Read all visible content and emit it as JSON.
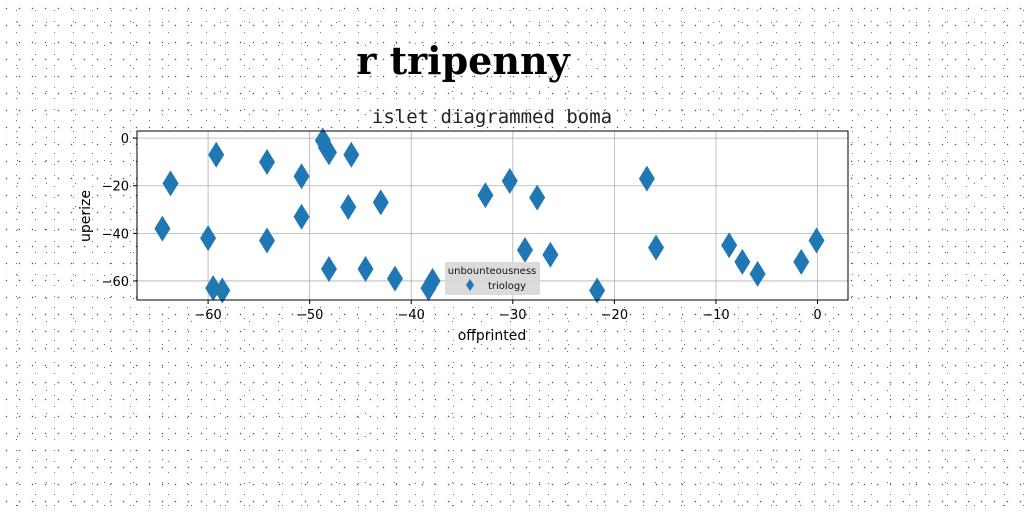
{
  "figure": {
    "suptitle": "r tripenny"
  },
  "chart_data": {
    "type": "scatter",
    "title": "islet diagrammed boma",
    "xlabel": "offprinted",
    "ylabel": "uperize",
    "xlim": [
      -67,
      3
    ],
    "ylim": [
      -68,
      3
    ],
    "xticks": [
      -60,
      -50,
      -40,
      -30,
      -20,
      -10,
      0
    ],
    "yticks": [
      0,
      -20,
      -40,
      -60
    ],
    "grid": true,
    "legend": {
      "title": "unbounteousness",
      "placement": "lower-center"
    },
    "series": [
      {
        "name": "triology",
        "marker": "thin-diamond",
        "color": "#1f77b4",
        "x": [
          -64.5,
          -63.7,
          -59.2,
          -60.0,
          -59.5,
          -58.6,
          -54.2,
          -54.2,
          -48.7,
          -48.4,
          -48.1,
          -50.8,
          -50.8,
          -48.1,
          -45.9,
          -46.2,
          -44.5,
          -43.0,
          -41.6,
          -38.3,
          -37.9,
          -32.7,
          -30.3,
          -28.8,
          -27.6,
          -26.3,
          -21.7,
          -16.8,
          -15.9,
          -8.7,
          -7.4,
          -5.9,
          -1.6,
          -0.1
        ],
        "y": [
          -38.0,
          -19.0,
          -7.0,
          -42.0,
          -63.0,
          -64.0,
          -10.0,
          -43.0,
          -1.0,
          -4.0,
          -6.0,
          -16.0,
          -33.0,
          -55.0,
          -7.0,
          -29.0,
          -55.0,
          -27.0,
          -59.0,
          -63.0,
          -60.0,
          -24.0,
          -18.0,
          -47.0,
          -25.0,
          -49.0,
          -64.0,
          -17.0,
          -46.0,
          -45.0,
          -52.0,
          -57.0,
          -52.0,
          -43.0
        ]
      }
    ]
  }
}
